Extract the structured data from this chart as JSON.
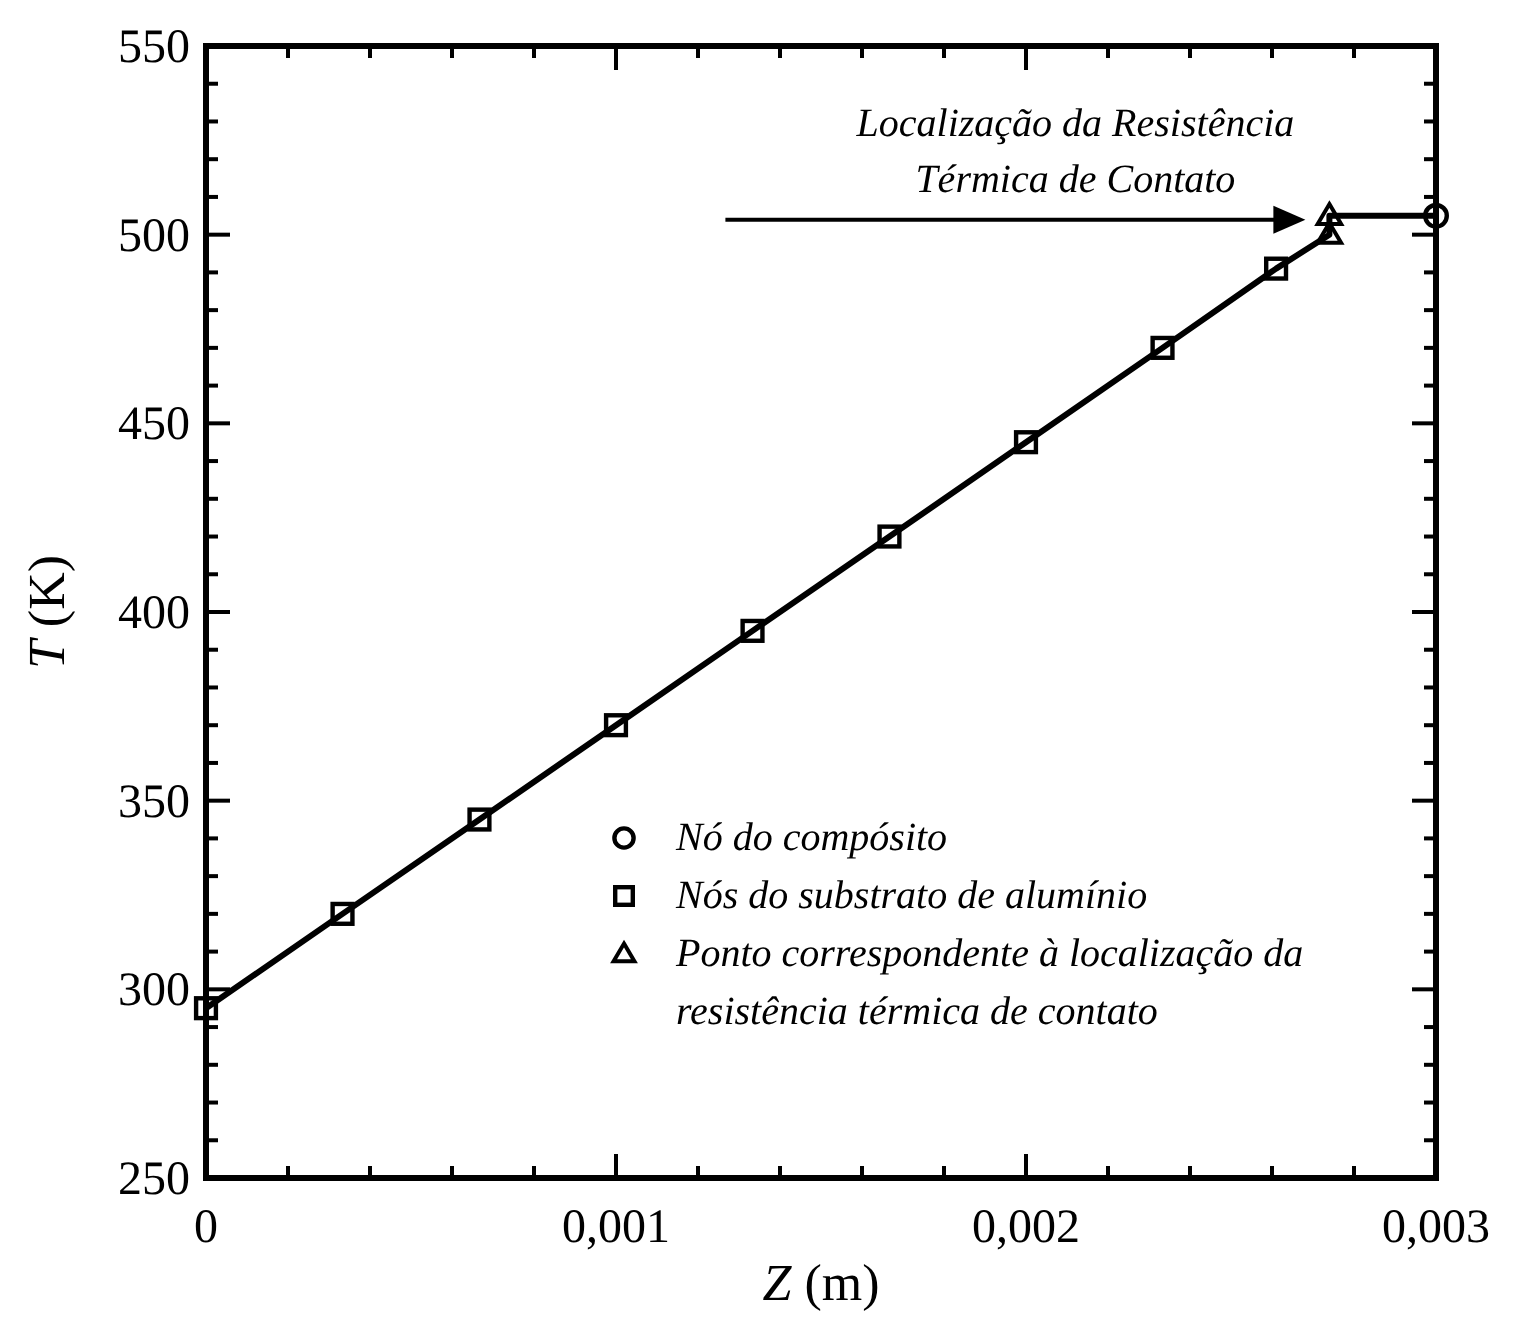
{
  "chart_data": {
    "type": "scatter",
    "xlabel": "Z (m)",
    "ylabel": "T (K)",
    "xlim": [
      0,
      0.003
    ],
    "ylim": [
      250,
      550
    ],
    "xticks": [
      0,
      {
        "value": 0.0002,
        "label": null
      },
      {
        "value": 0.0004,
        "label": null
      },
      {
        "value": 0.0006,
        "label": null
      },
      {
        "value": 0.0008,
        "label": null
      },
      {
        "value": 0.001,
        "label": "0,001"
      },
      {
        "value": 0.0012,
        "label": null
      },
      {
        "value": 0.0014,
        "label": null
      },
      {
        "value": 0.0016,
        "label": null
      },
      {
        "value": 0.0018,
        "label": null
      },
      {
        "value": 0.002,
        "label": "0,002"
      },
      {
        "value": 0.0022,
        "label": null
      },
      {
        "value": 0.0024,
        "label": null
      },
      {
        "value": 0.0026,
        "label": null
      },
      {
        "value": 0.0028,
        "label": null
      },
      {
        "value": 0.003,
        "label": "0,003"
      }
    ],
    "yticks": [
      250,
      {
        "value": 260,
        "label": null
      },
      {
        "value": 270,
        "label": null
      },
      {
        "value": 280,
        "label": null
      },
      {
        "value": 290,
        "label": null
      },
      300,
      {
        "value": 310,
        "label": null
      },
      {
        "value": 320,
        "label": null
      },
      {
        "value": 330,
        "label": null
      },
      {
        "value": 340,
        "label": null
      },
      350,
      {
        "value": 360,
        "label": null
      },
      {
        "value": 370,
        "label": null
      },
      {
        "value": 380,
        "label": null
      },
      {
        "value": 390,
        "label": null
      },
      400,
      {
        "value": 410,
        "label": null
      },
      {
        "value": 420,
        "label": null
      },
      {
        "value": 430,
        "label": null
      },
      {
        "value": 440,
        "label": null
      },
      450,
      {
        "value": 460,
        "label": null
      },
      {
        "value": 470,
        "label": null
      },
      {
        "value": 480,
        "label": null
      },
      {
        "value": 490,
        "label": null
      },
      500,
      {
        "value": 510,
        "label": null
      },
      {
        "value": 520,
        "label": null
      },
      {
        "value": 530,
        "label": null
      },
      {
        "value": 540,
        "label": null
      },
      550
    ],
    "grid": false,
    "legend": "bottom right",
    "line_style": "solid",
    "series": [
      {
        "type": "line",
        "color": "#000000",
        "marker": "none",
        "x": [
          0,
          0.000333,
          0.000667,
          0.001,
          0.001333,
          0.001667,
          0.002,
          0.002333,
          0.00261,
          0.00274,
          0.00274,
          0.003
        ],
        "values": [
          295,
          320,
          345,
          370,
          395,
          420,
          445,
          470,
          491,
          500,
          505,
          505
        ]
      },
      {
        "name": "Nó do compósito",
        "color": "#000000",
        "marker": "circle",
        "x": [
          0.003
        ],
        "values": [
          505
        ]
      },
      {
        "name": "Nós do substrato de alumínio",
        "color": "#000000",
        "marker": "square",
        "x": [
          0,
          0.000333,
          0.000667,
          0.001,
          0.001333,
          0.001667,
          0.002,
          0.002333,
          0.00261
        ],
        "values": [
          295,
          320,
          345,
          370,
          395,
          420,
          445,
          470,
          491
        ]
      },
      {
        "name": "Ponto correspondente à localização da resistência térmica de contato",
        "color": "#000000",
        "marker": "triangle",
        "x": [
          0.00274,
          0.00274
        ],
        "values": [
          500,
          505
        ]
      }
    ],
    "annotations": [
      {
        "text": "Localização da Resistência Térmica de Contato",
        "x": 0.00274,
        "y": 505
      }
    ]
  }
}
